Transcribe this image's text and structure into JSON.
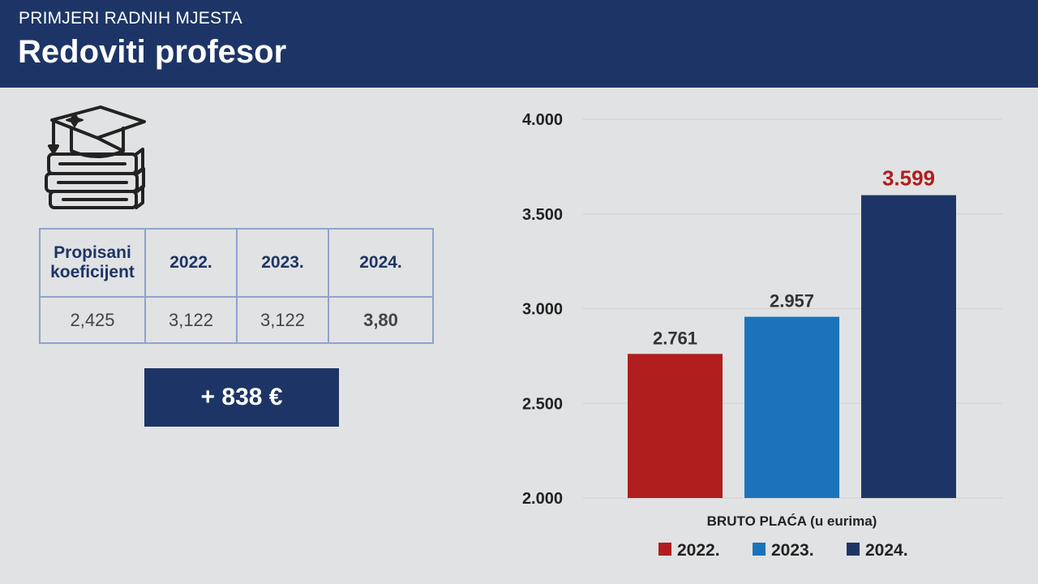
{
  "header": {
    "subtitle": "PRIMJERI RADNIH MJESTA",
    "title": "Redoviti profesor"
  },
  "icon": "graduation-cap-books-icon",
  "table": {
    "row_header": [
      "Propisani",
      "koeficijent"
    ],
    "years": [
      "2022.",
      "2023.",
      "2024."
    ],
    "values": [
      "2,425",
      "3,122",
      "3,122",
      "3,80"
    ]
  },
  "increase_label": "+ 838 €",
  "colors": {
    "header": "#1d3566",
    "y2022": "#b01e1e",
    "y2023": "#1b74bb",
    "y2024": "#1d3566",
    "highlight": "#b01e1e"
  },
  "chart_data": {
    "type": "bar",
    "categories": [
      "2022.",
      "2023.",
      "2024."
    ],
    "values": [
      2761,
      2957,
      3599
    ],
    "data_labels": [
      "2.761",
      "2.957",
      "3.599"
    ],
    "xlabel": "BRUTO PLAĆA (u eurima)",
    "ylabel": "",
    "ylim": [
      2000,
      4000
    ],
    "yticks": [
      2000,
      2500,
      3000,
      3500,
      4000
    ],
    "ytick_labels": [
      "2.000",
      "2.500",
      "3.000",
      "3.500",
      "4.000"
    ],
    "colors": [
      "#b01e1e",
      "#1b74bb",
      "#1d3566"
    ],
    "grid": true,
    "legend": "bottom"
  }
}
